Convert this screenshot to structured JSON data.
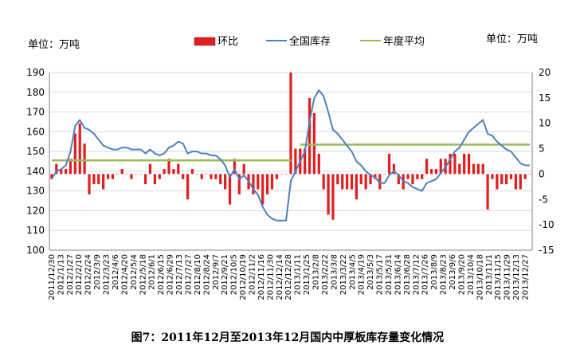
{
  "chart_data": {
    "type": "bar+line",
    "left_unit": "单位：万吨",
    "right_unit": "单位：万吨",
    "caption": "图7：2011年12月至2013年12月国内中厚板库存量变化情况",
    "left_axis": {
      "min": 100,
      "max": 190,
      "step": 10
    },
    "right_axis": {
      "min": -15,
      "max": 20,
      "step": 5
    },
    "legend": [
      {
        "label": "环比",
        "color": "#e02020",
        "kind": "bar"
      },
      {
        "label": "全国库存",
        "color": "#4f81bd",
        "kind": "line"
      },
      {
        "label": "年度平均",
        "color": "#9bbb59",
        "kind": "line"
      }
    ],
    "x_labels": [
      "2011/12/30",
      "2012/1/13",
      "2012/1/27",
      "2012/2/10",
      "2012/2/24",
      "2012/3/9",
      "2012/3/23",
      "2012/4/6",
      "2012/4/20",
      "2012/5/4",
      "2012/5/18",
      "2012/6/1",
      "2012/6/15",
      "2012/6/29",
      "2012/7/13",
      "2012/7/27",
      "2012/8/10",
      "2012/8/24",
      "2012/9/7",
      "2012/9/21",
      "2012/10/5",
      "2012/10/19",
      "2012/11/2",
      "2012/11/16",
      "2012/11/30",
      "2012/12/14",
      "2012/12/28",
      "2013/1/11",
      "2013/1/25",
      "2013/2/8",
      "2013/2/22",
      "2013/3/8",
      "2013/3/22",
      "2013/4/5",
      "2013/4/19",
      "2013/5/3",
      "2013/5/17",
      "2013/5/31",
      "2013/6/14",
      "2013/6/28",
      "2013/7/12",
      "2013/7/26",
      "2013/8/9",
      "2013/8/23",
      "2013/9/6",
      "2013/9/20",
      "2013/10/4",
      "2013/10/18",
      "2013/11/1",
      "2013/11/15",
      "2013/11/29",
      "2013/12/13",
      "2013/12/27"
    ],
    "series": [
      {
        "name": "全国库存",
        "axis": "left",
        "values": [
          136,
          140,
          141,
          143,
          150,
          163,
          166,
          162,
          161,
          159,
          156,
          153,
          152,
          151,
          151,
          152,
          152,
          151,
          151,
          151,
          149,
          151,
          149,
          148,
          149,
          152,
          153,
          155,
          154,
          149,
          150,
          150,
          149,
          149,
          148,
          148,
          146,
          143,
          137,
          141,
          136,
          138,
          135,
          131,
          128,
          122,
          118,
          116,
          115,
          115,
          115,
          135,
          140,
          145,
          150,
          165,
          177,
          181,
          178,
          170,
          161,
          159,
          156,
          153,
          150,
          145,
          143,
          140,
          138,
          137,
          134,
          134,
          138,
          140,
          138,
          135,
          134,
          132,
          131,
          130,
          134,
          135,
          136,
          139,
          142,
          146,
          150,
          152,
          156,
          160,
          162,
          164,
          166,
          159,
          158,
          155,
          153,
          151,
          150,
          147,
          144,
          143,
          143
        ]
      },
      {
        "name": "环比",
        "axis": "right",
        "values": [
          -1,
          2,
          1,
          1,
          3,
          8,
          10,
          6,
          -4,
          -2,
          -2,
          -3,
          -1,
          -1,
          0,
          1,
          0,
          -1,
          0,
          0,
          -2,
          2,
          -2,
          -1,
          1,
          3,
          1,
          2,
          -1,
          -5,
          1,
          0,
          -1,
          0,
          -1,
          -1,
          -2,
          -3,
          -6,
          3,
          -4,
          2,
          -3,
          -4,
          -3,
          -6,
          -4,
          -3,
          -1,
          0,
          0,
          20,
          5,
          5,
          5,
          15,
          12,
          4,
          -3,
          -8,
          -9,
          -2,
          -3,
          -3,
          -3,
          -5,
          -2,
          -3,
          -2,
          -1,
          -3,
          0,
          4,
          2,
          -2,
          -3,
          -1,
          -2,
          -1,
          -1,
          3,
          1,
          1,
          3,
          3,
          4,
          4,
          2,
          4,
          4,
          2,
          2,
          2,
          -7,
          -1,
          -3,
          -2,
          -2,
          -1,
          -3,
          -3,
          -1,
          0
        ]
      },
      {
        "name": "年度平均",
        "axis": "left",
        "segments": [
          {
            "from_index": 0,
            "to_index": 51,
            "value": 145.5
          },
          {
            "from_index": 53,
            "to_index": 104,
            "value": 153.5
          }
        ]
      }
    ]
  }
}
